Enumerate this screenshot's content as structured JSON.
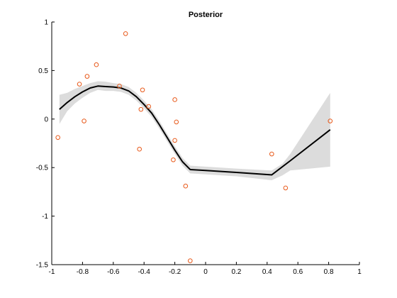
{
  "chart_data": {
    "type": "line",
    "title": "Posterior",
    "xlabel": "",
    "ylabel": "",
    "xlim": [
      -1,
      1
    ],
    "ylim": [
      -1.5,
      1
    ],
    "grid": false,
    "xticks": [
      -1,
      -0.8,
      -0.6,
      -0.4,
      -0.2,
      0,
      0.2,
      0.4,
      0.6,
      0.8,
      1
    ],
    "xtick_labels": [
      "-1",
      "-0.8",
      "-0.6",
      "-0.4",
      "-0.2",
      "0",
      "0.2",
      "0.4",
      "0.6",
      "0.8",
      "1"
    ],
    "yticks": [
      -1.5,
      -1,
      -0.5,
      0,
      0.5,
      1
    ],
    "ytick_labels": [
      "-1.5",
      "-1",
      "-0.5",
      "0",
      "0.5",
      "1"
    ],
    "series": [
      {
        "role": "mean",
        "kind": "line",
        "color": "#000000",
        "x": [
          -0.95,
          -0.9,
          -0.85,
          -0.8,
          -0.75,
          -0.7,
          -0.65,
          -0.6,
          -0.55,
          -0.5,
          -0.45,
          -0.4,
          -0.35,
          -0.3,
          -0.25,
          -0.2,
          -0.15,
          -0.1,
          0.0,
          0.2,
          0.43,
          0.55,
          0.81
        ],
        "y": [
          0.1,
          0.17,
          0.23,
          0.28,
          0.32,
          0.34,
          0.335,
          0.33,
          0.32,
          0.29,
          0.23,
          0.15,
          0.06,
          -0.06,
          -0.19,
          -0.32,
          -0.44,
          -0.52,
          -0.53,
          -0.55,
          -0.575,
          -0.43,
          -0.11
        ]
      },
      {
        "role": "confidence-band",
        "kind": "area",
        "color": "#dcdcdc",
        "x": [
          -0.95,
          -0.9,
          -0.85,
          -0.8,
          -0.75,
          -0.7,
          -0.65,
          -0.6,
          -0.55,
          -0.5,
          -0.45,
          -0.4,
          -0.35,
          -0.3,
          -0.25,
          -0.2,
          -0.15,
          -0.1,
          0.0,
          0.2,
          0.43,
          0.5,
          0.55,
          0.81
        ],
        "upper": [
          0.25,
          0.27,
          0.31,
          0.34,
          0.37,
          0.39,
          0.385,
          0.37,
          0.36,
          0.33,
          0.27,
          0.19,
          0.1,
          -0.02,
          -0.15,
          -0.28,
          -0.4,
          -0.48,
          -0.49,
          -0.51,
          -0.53,
          -0.46,
          -0.36,
          0.27
        ],
        "lower": [
          -0.05,
          0.08,
          0.16,
          0.22,
          0.27,
          0.3,
          0.29,
          0.29,
          0.28,
          0.25,
          0.19,
          0.11,
          0.02,
          -0.1,
          -0.23,
          -0.36,
          -0.48,
          -0.56,
          -0.57,
          -0.59,
          -0.63,
          -0.58,
          -0.53,
          -0.49
        ]
      },
      {
        "role": "observations",
        "kind": "scatter",
        "color": "#e8591a",
        "x": [
          -0.96,
          -0.82,
          -0.79,
          -0.77,
          -0.71,
          -0.56,
          -0.52,
          -0.43,
          -0.42,
          -0.41,
          -0.37,
          -0.21,
          -0.2,
          -0.2,
          -0.19,
          -0.13,
          -0.1,
          0.43,
          0.52,
          0.81
        ],
        "y": [
          -0.19,
          0.36,
          -0.02,
          0.44,
          0.56,
          0.34,
          0.88,
          -0.31,
          0.1,
          0.3,
          0.13,
          -0.42,
          -0.22,
          0.2,
          -0.03,
          -0.69,
          -1.46,
          -0.36,
          -0.71,
          -0.02
        ]
      }
    ]
  }
}
